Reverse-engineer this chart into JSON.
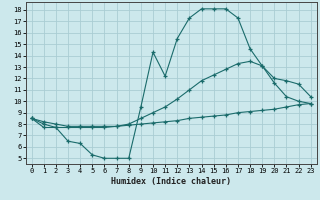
{
  "xlabel": "Humidex (Indice chaleur)",
  "bg_color": "#cce8ec",
  "grid_color": "#aacdd4",
  "line_color": "#1a6b6b",
  "xlim": [
    -0.5,
    23.5
  ],
  "ylim": [
    4.5,
    18.7
  ],
  "xticks": [
    0,
    1,
    2,
    3,
    4,
    5,
    6,
    7,
    8,
    9,
    10,
    11,
    12,
    13,
    14,
    15,
    16,
    17,
    18,
    19,
    20,
    21,
    22,
    23
  ],
  "yticks": [
    5,
    6,
    7,
    8,
    9,
    10,
    11,
    12,
    13,
    14,
    15,
    16,
    17,
    18
  ],
  "curve1_x": [
    0,
    1,
    2,
    3,
    4,
    5,
    6,
    7,
    8,
    9,
    10,
    11,
    12,
    13,
    14,
    15,
    16,
    17,
    18,
    19,
    20,
    21,
    22,
    23
  ],
  "curve1_y": [
    8.5,
    7.7,
    7.7,
    6.5,
    6.3,
    5.3,
    5.0,
    5.0,
    5.0,
    9.5,
    14.3,
    12.2,
    15.5,
    17.3,
    18.1,
    18.1,
    18.1,
    17.3,
    14.6,
    13.1,
    11.6,
    10.4,
    10.0,
    9.8
  ],
  "curve2_x": [
    0,
    1,
    2,
    3,
    4,
    5,
    6,
    7,
    8,
    9,
    10,
    11,
    12,
    13,
    14,
    15,
    16,
    17,
    18,
    19,
    20,
    21,
    22,
    23
  ],
  "curve2_y": [
    8.5,
    8.2,
    8.0,
    7.8,
    7.8,
    7.8,
    7.8,
    7.8,
    8.0,
    8.5,
    9.0,
    9.5,
    10.2,
    11.0,
    11.8,
    12.3,
    12.8,
    13.3,
    13.5,
    13.1,
    12.0,
    11.8,
    11.5,
    10.4
  ],
  "curve3_x": [
    0,
    1,
    2,
    3,
    4,
    5,
    6,
    7,
    8,
    9,
    10,
    11,
    12,
    13,
    14,
    15,
    16,
    17,
    18,
    19,
    20,
    21,
    22,
    23
  ],
  "curve3_y": [
    8.5,
    8.0,
    7.7,
    7.7,
    7.7,
    7.7,
    7.7,
    7.8,
    7.9,
    8.0,
    8.1,
    8.2,
    8.3,
    8.5,
    8.6,
    8.7,
    8.8,
    9.0,
    9.1,
    9.2,
    9.3,
    9.5,
    9.7,
    9.8
  ]
}
